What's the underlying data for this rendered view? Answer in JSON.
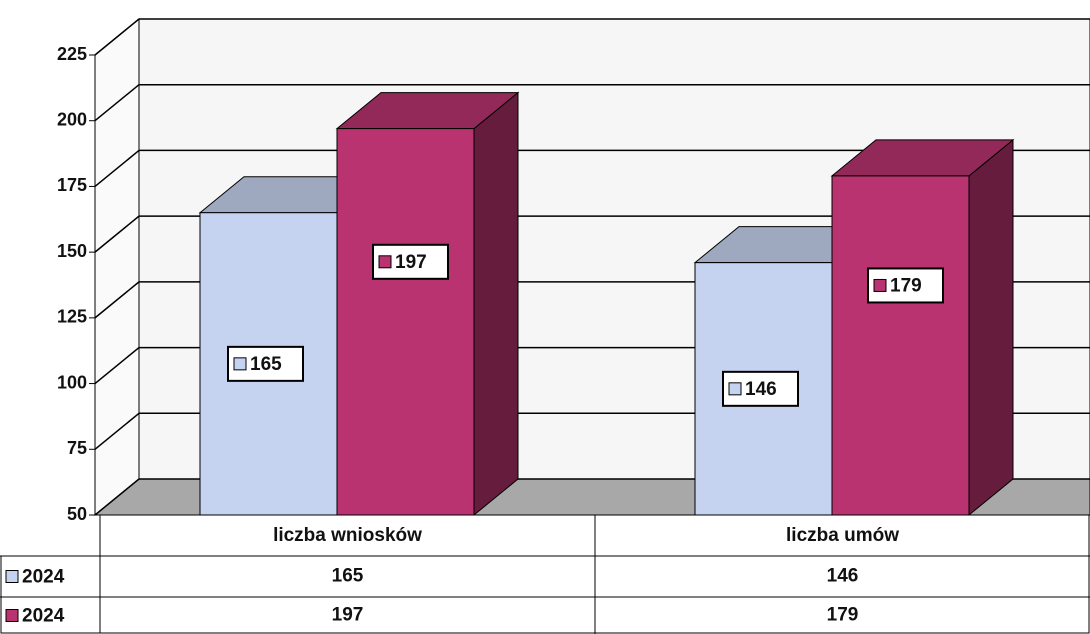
{
  "chart_data": {
    "type": "bar3d",
    "categories": [
      "liczba wniosków",
      "liczba umów"
    ],
    "series": [
      {
        "name": "2024",
        "color": "#c5d3f0",
        "values": [
          165,
          146
        ]
      },
      {
        "name": "2024",
        "color": "#b8336f",
        "values": [
          197,
          179
        ]
      }
    ],
    "ylim": [
      50,
      225
    ],
    "yticks": [
      50,
      75,
      100,
      125,
      150,
      175,
      200,
      225
    ],
    "grid": true,
    "data_table": true
  }
}
